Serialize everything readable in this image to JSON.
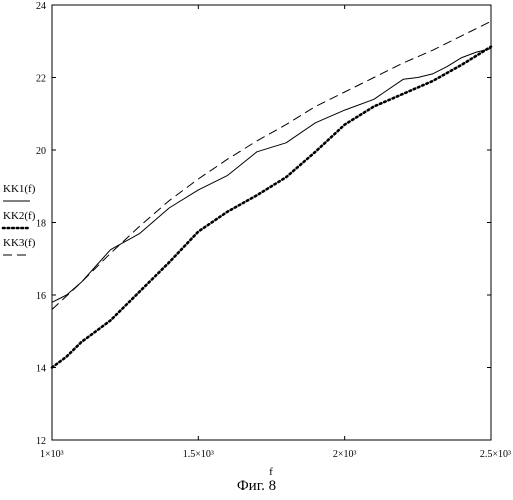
{
  "chart_data": {
    "type": "line",
    "xlabel": "f",
    "ylabel": "",
    "title": "",
    "caption": "Фиг. 8",
    "xlim": [
      1000,
      2500
    ],
    "ylim": [
      12,
      24
    ],
    "x_ticks": [
      {
        "value": 1000,
        "label": "1×10³"
      },
      {
        "value": 1500,
        "label": "1.5×10³"
      },
      {
        "value": 2000,
        "label": "2×10³"
      },
      {
        "value": 2500,
        "label": "2.5×10³"
      }
    ],
    "y_ticks": [
      {
        "value": 12,
        "label": "12"
      },
      {
        "value": 14,
        "label": "14"
      },
      {
        "value": 16,
        "label": "16"
      },
      {
        "value": 18,
        "label": "18"
      },
      {
        "value": 20,
        "label": "20"
      },
      {
        "value": 22,
        "label": "22"
      },
      {
        "value": 24,
        "label": "24"
      }
    ],
    "grid": false,
    "legend": "left",
    "series": [
      {
        "name": "KK1(f)",
        "style": "solid",
        "color": "#000000",
        "x": [
          1000,
          1050,
          1100,
          1150,
          1200,
          1300,
          1400,
          1500,
          1600,
          1700,
          1800,
          1900,
          2000,
          2100,
          2200,
          2250,
          2300,
          2350,
          2400,
          2450,
          2500
        ],
        "y": [
          15.8,
          16.0,
          16.35,
          16.8,
          17.25,
          17.7,
          18.4,
          18.9,
          19.3,
          19.95,
          20.2,
          20.75,
          21.1,
          21.4,
          21.95,
          22.0,
          22.1,
          22.3,
          22.55,
          22.7,
          22.8
        ]
      },
      {
        "name": "KK2(f)",
        "style": "dotted",
        "color": "#000000",
        "x": [
          1000,
          1050,
          1100,
          1150,
          1200,
          1300,
          1400,
          1500,
          1600,
          1700,
          1800,
          1900,
          2000,
          2100,
          2200,
          2300,
          2400,
          2500
        ],
        "y": [
          14.0,
          14.3,
          14.7,
          15.0,
          15.3,
          16.1,
          16.9,
          17.75,
          18.3,
          18.75,
          19.25,
          19.95,
          20.7,
          21.2,
          21.55,
          21.9,
          22.35,
          22.85
        ]
      },
      {
        "name": "KK3(f)",
        "style": "dashed",
        "color": "#000000",
        "x": [
          1000,
          1100,
          1200,
          1300,
          1400,
          1500,
          1600,
          1700,
          1800,
          1900,
          2000,
          2100,
          2200,
          2300,
          2400,
          2500
        ],
        "y": [
          15.6,
          16.35,
          17.15,
          17.9,
          18.6,
          19.2,
          19.75,
          20.25,
          20.7,
          21.2,
          21.6,
          22.0,
          22.4,
          22.75,
          23.15,
          23.55
        ]
      }
    ]
  }
}
